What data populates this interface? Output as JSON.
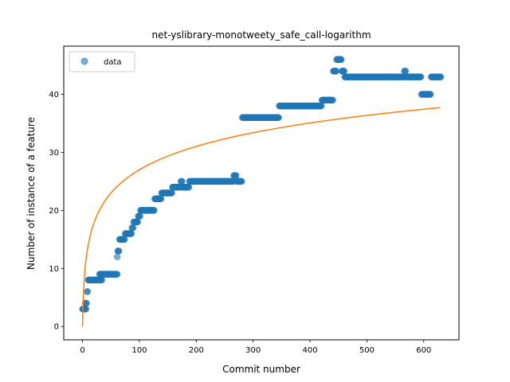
{
  "chart_data": {
    "type": "scatter",
    "title": "net-yslibrary-monotweety_safe_call-logarithm",
    "xlabel": "Commit number",
    "ylabel": "Number of instance of a feature",
    "xlim": [
      -33,
      662
    ],
    "ylim": [
      -2.3,
      48.3
    ],
    "xticks": [
      0,
      100,
      200,
      300,
      400,
      500,
      600
    ],
    "yticks": [
      0,
      10,
      20,
      30,
      40
    ],
    "grid": false,
    "legend": {
      "position": "top-left",
      "entries": [
        "data"
      ]
    },
    "colors": {
      "data": "#1f77b4",
      "fit": "#ff7f0e"
    },
    "series": [
      {
        "name": "data",
        "kind": "scatter",
        "steps": [
          [
            0,
            6,
            3
          ],
          [
            5,
            7,
            4
          ],
          [
            8,
            9,
            6
          ],
          [
            10,
            34,
            8
          ],
          [
            30,
            61,
            9
          ],
          [
            61,
            61,
            12
          ],
          [
            62,
            64,
            13
          ],
          [
            65,
            74,
            15
          ],
          [
            75,
            79,
            16
          ],
          [
            80,
            86,
            16
          ],
          [
            87,
            89,
            17
          ],
          [
            90,
            97,
            18
          ],
          [
            98,
            101,
            19
          ],
          [
            102,
            126,
            20
          ],
          [
            127,
            138,
            22
          ],
          [
            139,
            157,
            23
          ],
          [
            158,
            172,
            24
          ],
          [
            173,
            175,
            25
          ],
          [
            176,
            187,
            24
          ],
          [
            188,
            265,
            25
          ],
          [
            266,
            270,
            26
          ],
          [
            271,
            280,
            25
          ],
          [
            281,
            345,
            36
          ],
          [
            346,
            420,
            38
          ],
          [
            421,
            440,
            39
          ],
          [
            441,
            446,
            44
          ],
          [
            447,
            455,
            46
          ],
          [
            456,
            460,
            44
          ],
          [
            461,
            565,
            43
          ],
          [
            566,
            568,
            44
          ],
          [
            569,
            595,
            43
          ],
          [
            596,
            612,
            40
          ],
          [
            613,
            630,
            43
          ]
        ]
      },
      {
        "name": "",
        "kind": "line",
        "x_range": [
          0,
          630
        ],
        "model": "a*ln(x+1)",
        "a": 5.85
      }
    ]
  }
}
